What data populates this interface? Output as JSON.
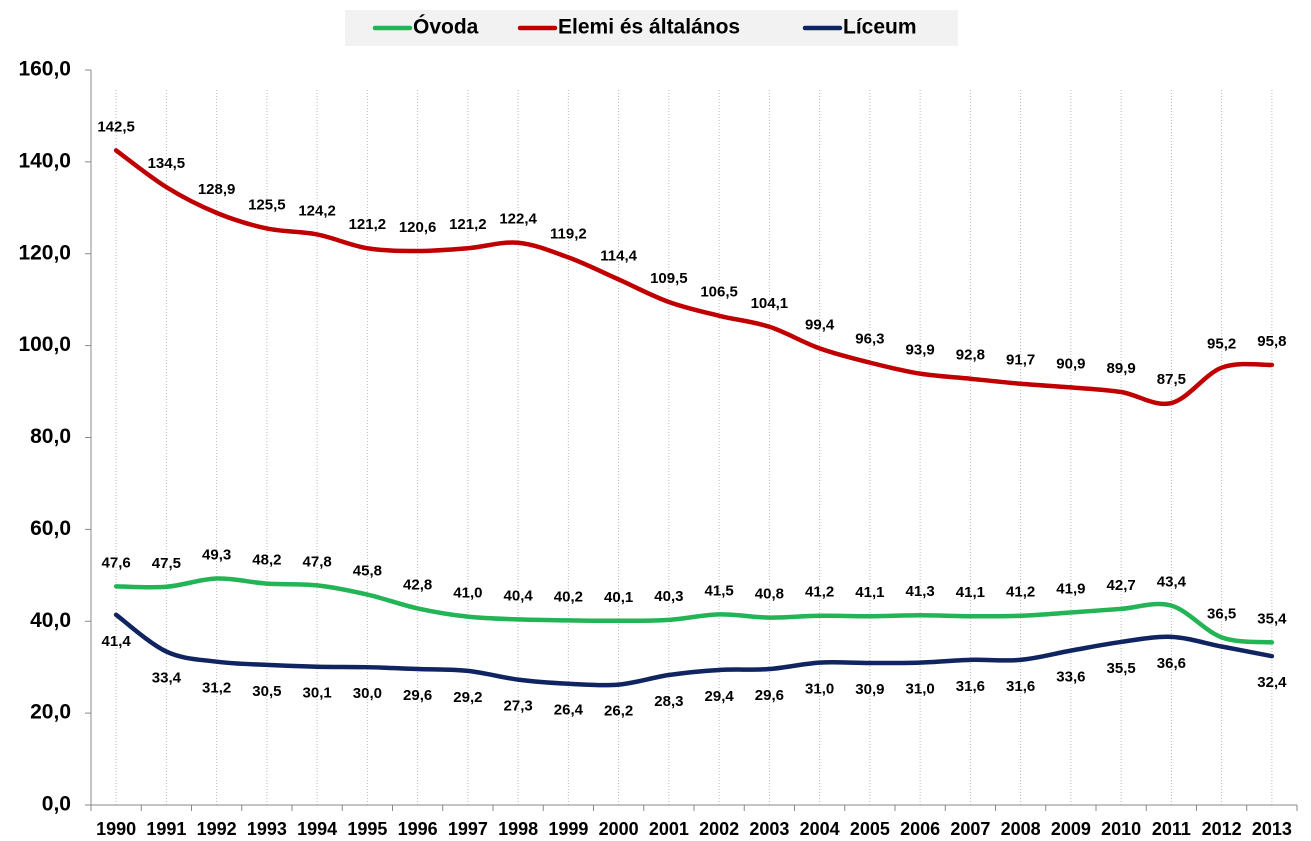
{
  "chart_data": {
    "type": "line",
    "categories": [
      "1990",
      "1991",
      "1992",
      "1993",
      "1994",
      "1995",
      "1996",
      "1997",
      "1998",
      "1999",
      "2000",
      "2001",
      "2002",
      "2003",
      "2004",
      "2005",
      "2006",
      "2007",
      "2008",
      "2009",
      "2010",
      "2011",
      "2012",
      "2013"
    ],
    "series": [
      {
        "name": "Óvoda",
        "color": "#22b455",
        "label_side": "above",
        "values": [
          47.6,
          47.5,
          49.3,
          48.2,
          47.8,
          45.8,
          42.8,
          41.0,
          40.4,
          40.2,
          40.1,
          40.3,
          41.5,
          40.8,
          41.2,
          41.1,
          41.3,
          41.1,
          41.2,
          41.9,
          42.7,
          43.4,
          36.5,
          35.4
        ],
        "value_labels": [
          "47,6",
          "47,5",
          "49,3",
          "48,2",
          "47,8",
          "45,8",
          "42,8",
          "41,0",
          "40,4",
          "40,2",
          "40,1",
          "40,3",
          "41,5",
          "40,8",
          "41,2",
          "41,1",
          "41,3",
          "41,1",
          "41,2",
          "41,9",
          "42,7",
          "43,4",
          "36,5",
          "35,4"
        ]
      },
      {
        "name": "Elemi és általános",
        "color": "#c00000",
        "label_side": "above",
        "values": [
          142.5,
          134.5,
          128.9,
          125.5,
          124.2,
          121.2,
          120.6,
          121.2,
          122.4,
          119.2,
          114.4,
          109.5,
          106.5,
          104.1,
          99.4,
          96.3,
          93.9,
          92.8,
          91.7,
          90.9,
          89.9,
          87.5,
          95.2,
          95.8
        ],
        "value_labels": [
          "142,5",
          "134,5",
          "128,9",
          "125,5",
          "124,2",
          "121,2",
          "120,6",
          "121,2",
          "122,4",
          "119,2",
          "114,4",
          "109,5",
          "106,5",
          "104,1",
          "99,4",
          "96,3",
          "93,9",
          "92,8",
          "91,7",
          "90,9",
          "89,9",
          "87,5",
          "95,2",
          "95,8"
        ]
      },
      {
        "name": "Líceum",
        "color": "#0f2460",
        "label_side": "below",
        "values": [
          41.4,
          33.4,
          31.2,
          30.5,
          30.1,
          30.0,
          29.6,
          29.2,
          27.3,
          26.4,
          26.2,
          28.3,
          29.4,
          29.6,
          31.0,
          30.9,
          31.0,
          31.6,
          31.6,
          33.6,
          35.5,
          36.6,
          34.5,
          32.4
        ],
        "value_labels": [
          "41,4",
          "33,4",
          "31,2",
          "30,5",
          "30,1",
          "30,0",
          "29,6",
          "29,2",
          "27,3",
          "26,4",
          "26,2",
          "28,3",
          "29,4",
          "29,6",
          "31,0",
          "30,9",
          "31,0",
          "31,6",
          "31,6",
          "33,6",
          "35,5",
          "36,6",
          null,
          "32,4"
        ]
      }
    ],
    "ylim": [
      0,
      160
    ],
    "yticks": [
      {
        "value": 0,
        "label": "0,0"
      },
      {
        "value": 20,
        "label": "20,0"
      },
      {
        "value": 40,
        "label": "40,0"
      },
      {
        "value": 60,
        "label": "60,0"
      },
      {
        "value": 80,
        "label": "80,0"
      },
      {
        "value": 100,
        "label": "100,0"
      },
      {
        "value": 120,
        "label": "120,0"
      },
      {
        "value": 140,
        "label": "140,0"
      },
      {
        "value": 160,
        "label": "160,0"
      }
    ],
    "legend": "top",
    "grid": "vertical"
  }
}
